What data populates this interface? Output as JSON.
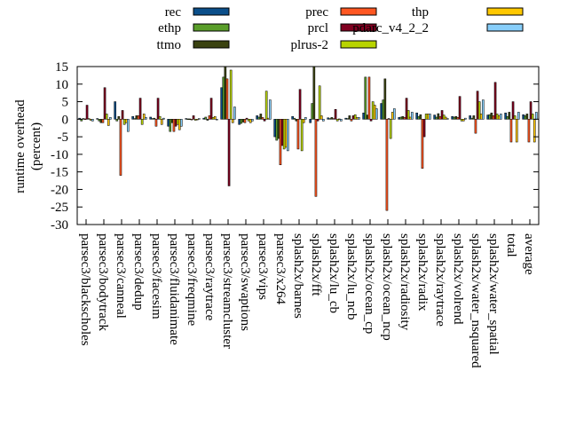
{
  "chart_data": {
    "type": "bar",
    "ylabel_lines": [
      "runtime overhead",
      "(percent)"
    ],
    "ylim": [
      -30,
      15
    ],
    "yticks": [
      15,
      10,
      5,
      0,
      -5,
      -10,
      -15,
      -20,
      -25,
      -30
    ],
    "grid": false,
    "legend_position": "top",
    "categories": [
      "parsec3/blackscholes",
      "parsec3/bodytrack",
      "parsec3/canneal",
      "parsec3/dedup",
      "parsec3/facesim",
      "parsec3/fluidanimate",
      "parsec3/freqmine",
      "parsec3/raytrace",
      "parsec3/streamcluster",
      "parsec3/swaptions",
      "parsec3/vips",
      "parsec3/x264",
      "splash2x/barnes",
      "splash2x/fft",
      "splash2x/lu_cb",
      "splash2x/lu_ncb",
      "splash2x/ocean_cp",
      "splash2x/ocean_ncp",
      "splash2x/radiosity",
      "splash2x/radix",
      "splash2x/raytrace",
      "splash2x/volrend",
      "splash2x/water_nsquared",
      "splash2x/water_spatial",
      "total",
      "average"
    ],
    "series": [
      {
        "name": "rec",
        "color": "#0b4f8a",
        "values": [
          0.3,
          0.2,
          5.0,
          0.8,
          0.6,
          -2.0,
          0.2,
          0.3,
          9.0,
          -1.5,
          1.0,
          -5.0,
          0.8,
          -1.0,
          0.4,
          0.3,
          1.8,
          4.5,
          0.5,
          1.8,
          1.2,
          0.8,
          1.0,
          1.2,
          1.8,
          1.3
        ]
      },
      {
        "name": "ethp",
        "color": "#5a9e2a",
        "values": [
          -0.5,
          -0.5,
          -0.5,
          0.2,
          0.2,
          -3.5,
          0.1,
          0.6,
          12.0,
          -1.2,
          0.6,
          -6.0,
          0.3,
          4.5,
          0.2,
          0.2,
          12.0,
          5.5,
          0.6,
          0.8,
          0.6,
          0.6,
          0.3,
          1.3,
          0.8,
          1.0
        ]
      },
      {
        "name": "ttmo",
        "color": "#3a4210",
        "values": [
          0.2,
          -1.0,
          0.8,
          1.0,
          0.3,
          -1.0,
          0.1,
          -0.3,
          15.0,
          -0.8,
          1.5,
          -5.5,
          -0.5,
          15.0,
          0.5,
          1.0,
          1.2,
          11.5,
          0.8,
          1.3,
          1.6,
          0.8,
          1.0,
          1.8,
          2.0,
          1.5
        ]
      },
      {
        "name": "prec",
        "color": "#ff5722",
        "values": [
          0.1,
          -1.0,
          -16.0,
          1.0,
          -2.0,
          -3.5,
          0.0,
          1.0,
          11.5,
          -1.0,
          0.5,
          -13.0,
          -8.5,
          -22.0,
          0.2,
          -0.5,
          12.0,
          -26.0,
          0.5,
          -14.0,
          0.8,
          0.5,
          -4.0,
          1.0,
          -6.5,
          -6.5
        ]
      },
      {
        "name": "prcl",
        "color": "#800020",
        "values": [
          4.0,
          9.0,
          2.5,
          6.0,
          6.0,
          -2.0,
          1.0,
          6.0,
          -19.0,
          0.3,
          -0.5,
          -7.5,
          8.5,
          -0.5,
          2.8,
          1.0,
          -0.5,
          0.2,
          6.0,
          -5.0,
          2.5,
          6.5,
          8.0,
          10.5,
          5.0,
          5.0
        ]
      },
      {
        "name": "plrus-2",
        "color": "#b8d400",
        "values": [
          0.2,
          1.5,
          -1.5,
          -1.5,
          0.8,
          -1.5,
          -0.3,
          0.5,
          14.0,
          -0.5,
          8.0,
          -8.5,
          -9.0,
          9.5,
          -0.5,
          1.3,
          5.0,
          -5.5,
          2.5,
          1.5,
          1.2,
          -0.5,
          5.0,
          1.5,
          1.0,
          1.5
        ]
      },
      {
        "name": "thp",
        "color": "#ffc800",
        "values": [
          -0.3,
          -1.8,
          -1.0,
          1.5,
          -1.5,
          -3.0,
          0.0,
          0.8,
          -1.0,
          -1.0,
          0.3,
          -8.0,
          -1.0,
          1.0,
          0.1,
          0.5,
          4.0,
          2.0,
          0.6,
          1.5,
          0.6,
          -0.5,
          1.5,
          1.0,
          -6.5,
          -6.5
        ]
      },
      {
        "name": "pdarc_v4_2_2",
        "color": "#87cefa",
        "values": [
          -0.5,
          0.5,
          -3.5,
          0.5,
          0.3,
          -2.0,
          0.2,
          0.0,
          3.5,
          -0.5,
          5.5,
          -9.0,
          0.5,
          -0.5,
          -0.5,
          0.5,
          3.0,
          3.0,
          2.0,
          1.5,
          0.2,
          0.3,
          5.5,
          1.5,
          2.0,
          2.0
        ]
      }
    ]
  }
}
